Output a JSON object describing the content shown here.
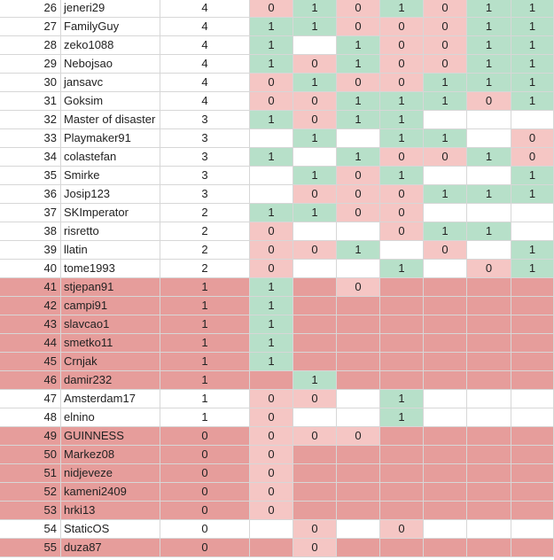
{
  "sheet": {
    "rows": [
      {
        "rank": "26",
        "name": "jeneri29",
        "points": "4",
        "out": false,
        "cells": [
          "0",
          "1",
          "0",
          "1",
          "0",
          "1",
          "1"
        ]
      },
      {
        "rank": "27",
        "name": "FamilyGuy",
        "points": "4",
        "out": false,
        "cells": [
          "1",
          "1",
          "0",
          "0",
          "0",
          "1",
          "1"
        ]
      },
      {
        "rank": "28",
        "name": "zeko1088",
        "points": "4",
        "out": false,
        "cells": [
          "1",
          "",
          "1",
          "0",
          "0",
          "1",
          "1"
        ]
      },
      {
        "rank": "29",
        "name": "Nebojsao",
        "points": "4",
        "out": false,
        "cells": [
          "1",
          "0",
          "1",
          "0",
          "0",
          "1",
          "1"
        ]
      },
      {
        "rank": "30",
        "name": "jansavc",
        "points": "4",
        "out": false,
        "cells": [
          "0",
          "1",
          "0",
          "0",
          "1",
          "1",
          "1"
        ]
      },
      {
        "rank": "31",
        "name": "Goksim",
        "points": "4",
        "out": false,
        "cells": [
          "0",
          "0",
          "1",
          "1",
          "1",
          "0",
          "1"
        ]
      },
      {
        "rank": "32",
        "name": "Master of disaster",
        "points": "3",
        "out": false,
        "cells": [
          "1",
          "0",
          "1",
          "1",
          "",
          "",
          ""
        ]
      },
      {
        "rank": "33",
        "name": "Playmaker91",
        "points": "3",
        "out": false,
        "cells": [
          "",
          "1",
          "",
          "1",
          "1",
          "",
          "0"
        ]
      },
      {
        "rank": "34",
        "name": "colastefan",
        "points": "3",
        "out": false,
        "cells": [
          "1",
          "",
          "1",
          "0",
          "0",
          "1",
          "0"
        ]
      },
      {
        "rank": "35",
        "name": "Smirke",
        "points": "3",
        "out": false,
        "cells": [
          "",
          "1",
          "0",
          "1",
          "",
          "",
          "1"
        ]
      },
      {
        "rank": "36",
        "name": "Josip123",
        "points": "3",
        "out": false,
        "cells": [
          "",
          "0",
          "0",
          "0",
          "1",
          "1",
          "1"
        ]
      },
      {
        "rank": "37",
        "name": "SKImperator",
        "points": "2",
        "out": false,
        "cells": [
          "1",
          "1",
          "0",
          "0",
          "",
          "",
          ""
        ]
      },
      {
        "rank": "38",
        "name": "risretto",
        "points": "2",
        "out": false,
        "cells": [
          "0",
          "",
          "",
          "0",
          "1",
          "1",
          ""
        ]
      },
      {
        "rank": "39",
        "name": "llatin",
        "points": "2",
        "out": false,
        "cells": [
          "0",
          "0",
          "1",
          "",
          "0",
          "",
          "1"
        ]
      },
      {
        "rank": "40",
        "name": "tome1993",
        "points": "2",
        "out": false,
        "cells": [
          "0",
          "",
          "",
          "1",
          "",
          "0",
          "1"
        ]
      },
      {
        "rank": "41",
        "name": "stjepan91",
        "points": "1",
        "out": true,
        "cells": [
          "1",
          "",
          "0",
          "",
          "",
          "",
          ""
        ]
      },
      {
        "rank": "42",
        "name": "campi91",
        "points": "1",
        "out": true,
        "cells": [
          "1",
          "",
          "",
          "",
          "",
          "",
          ""
        ]
      },
      {
        "rank": "43",
        "name": "slavcao1",
        "points": "1",
        "out": true,
        "cells": [
          "1",
          "",
          "",
          "",
          "",
          "",
          ""
        ]
      },
      {
        "rank": "44",
        "name": "smetko11",
        "points": "1",
        "out": true,
        "cells": [
          "1",
          "",
          "",
          "",
          "",
          "",
          ""
        ]
      },
      {
        "rank": "45",
        "name": "Crnjak",
        "points": "1",
        "out": true,
        "cells": [
          "1",
          "",
          "",
          "",
          "",
          "",
          ""
        ]
      },
      {
        "rank": "46",
        "name": "damir232",
        "points": "1",
        "out": true,
        "cells": [
          "",
          "1",
          "",
          "",
          "",
          "",
          ""
        ]
      },
      {
        "rank": "47",
        "name": "Amsterdam17",
        "points": "1",
        "out": false,
        "cells": [
          "0",
          "0",
          "",
          "1",
          "",
          "",
          ""
        ]
      },
      {
        "rank": "48",
        "name": "elnino",
        "points": "1",
        "out": false,
        "cells": [
          "0",
          "",
          "",
          "1",
          "",
          "",
          ""
        ]
      },
      {
        "rank": "49",
        "name": "GUINNESS",
        "points": "0",
        "out": true,
        "cells": [
          "0",
          "0",
          "0",
          "",
          "",
          "",
          ""
        ]
      },
      {
        "rank": "50",
        "name": "Markez08",
        "points": "0",
        "out": true,
        "cells": [
          "0",
          "",
          "",
          "",
          "",
          "",
          ""
        ]
      },
      {
        "rank": "51",
        "name": "nidjeveze",
        "points": "0",
        "out": true,
        "cells": [
          "0",
          "",
          "",
          "",
          "",
          "",
          ""
        ]
      },
      {
        "rank": "52",
        "name": "kameni2409",
        "points": "0",
        "out": true,
        "cells": [
          "0",
          "",
          "",
          "",
          "",
          "",
          ""
        ]
      },
      {
        "rank": "53",
        "name": "hrki13",
        "points": "0",
        "out": true,
        "cells": [
          "0",
          "",
          "",
          "",
          "",
          "",
          ""
        ]
      },
      {
        "rank": "54",
        "name": "StaticOS",
        "points": "0",
        "out": false,
        "cells": [
          "",
          "0",
          "",
          "0",
          "",
          "",
          ""
        ]
      },
      {
        "rank": "55",
        "name": "duza87",
        "points": "0",
        "out": true,
        "cells": [
          "",
          "0",
          "",
          "",
          "",
          "",
          ""
        ]
      }
    ],
    "colors": {
      "correct": "#b7e0c9",
      "wrong": "#f5c6c4",
      "eliminated": "#e69d9b",
      "grid": "#d7d7d7"
    }
  }
}
